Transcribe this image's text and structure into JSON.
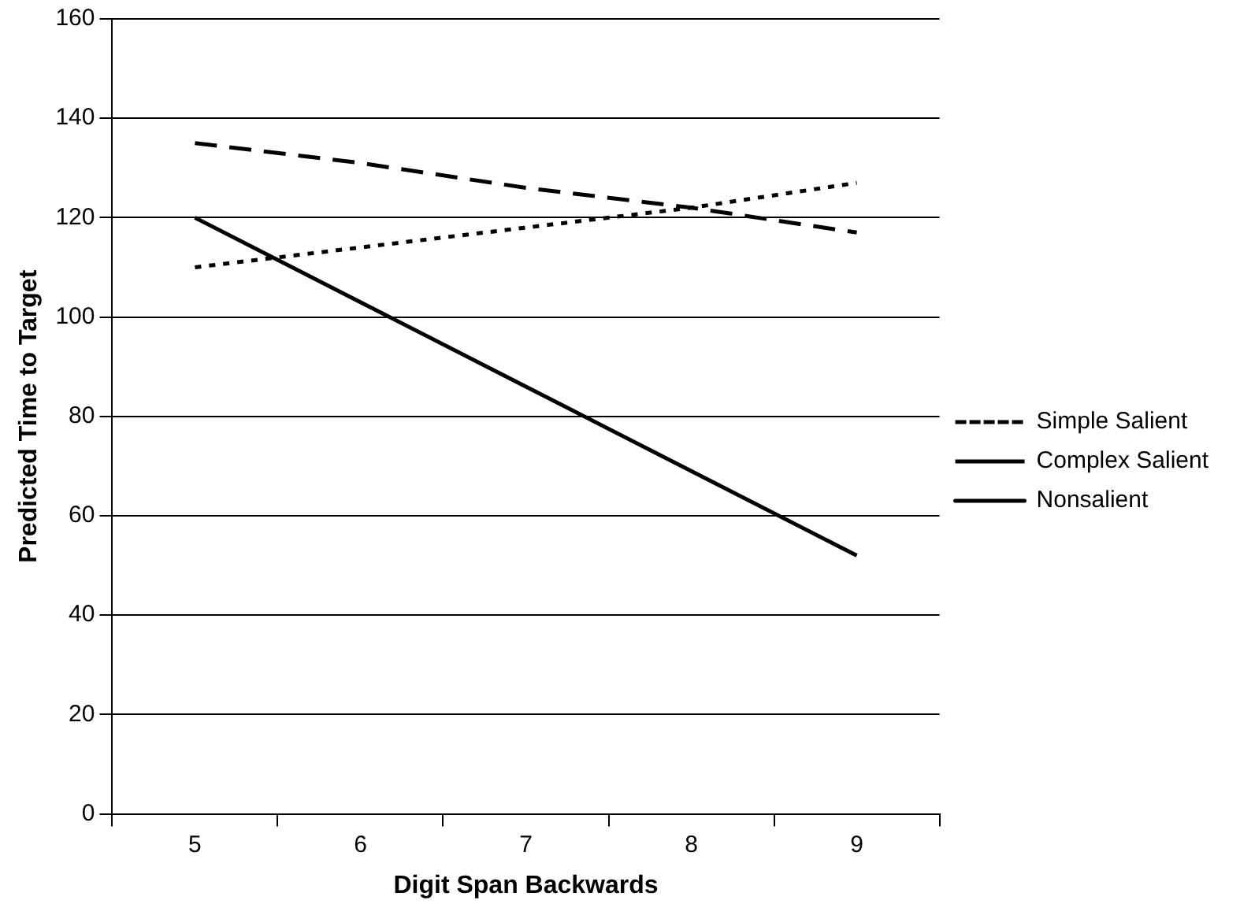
{
  "chart_data": {
    "type": "line",
    "xlabel": "Digit Span Backwards",
    "ylabel": "Predicted Time to Target",
    "categories": [
      "5",
      "6",
      "7",
      "8",
      "9"
    ],
    "series": [
      {
        "name": "Simple Salient",
        "color": "#000000",
        "line_style": "dotted",
        "values": [
          110,
          114,
          118,
          122,
          127
        ]
      },
      {
        "name": "Complex Salient",
        "color": "#000000",
        "line_style": "dashed",
        "values": [
          135,
          131,
          126,
          122,
          117
        ]
      },
      {
        "name": "Nonsalient",
        "color": "#000000",
        "line_style": "solid",
        "values": [
          120,
          103,
          86,
          69,
          52
        ]
      }
    ],
    "ylim": [
      0,
      160
    ],
    "yticks": [
      0,
      20,
      40,
      60,
      80,
      100,
      120,
      140,
      160
    ],
    "grid": "y",
    "legend": "right",
    "marker": "none"
  }
}
